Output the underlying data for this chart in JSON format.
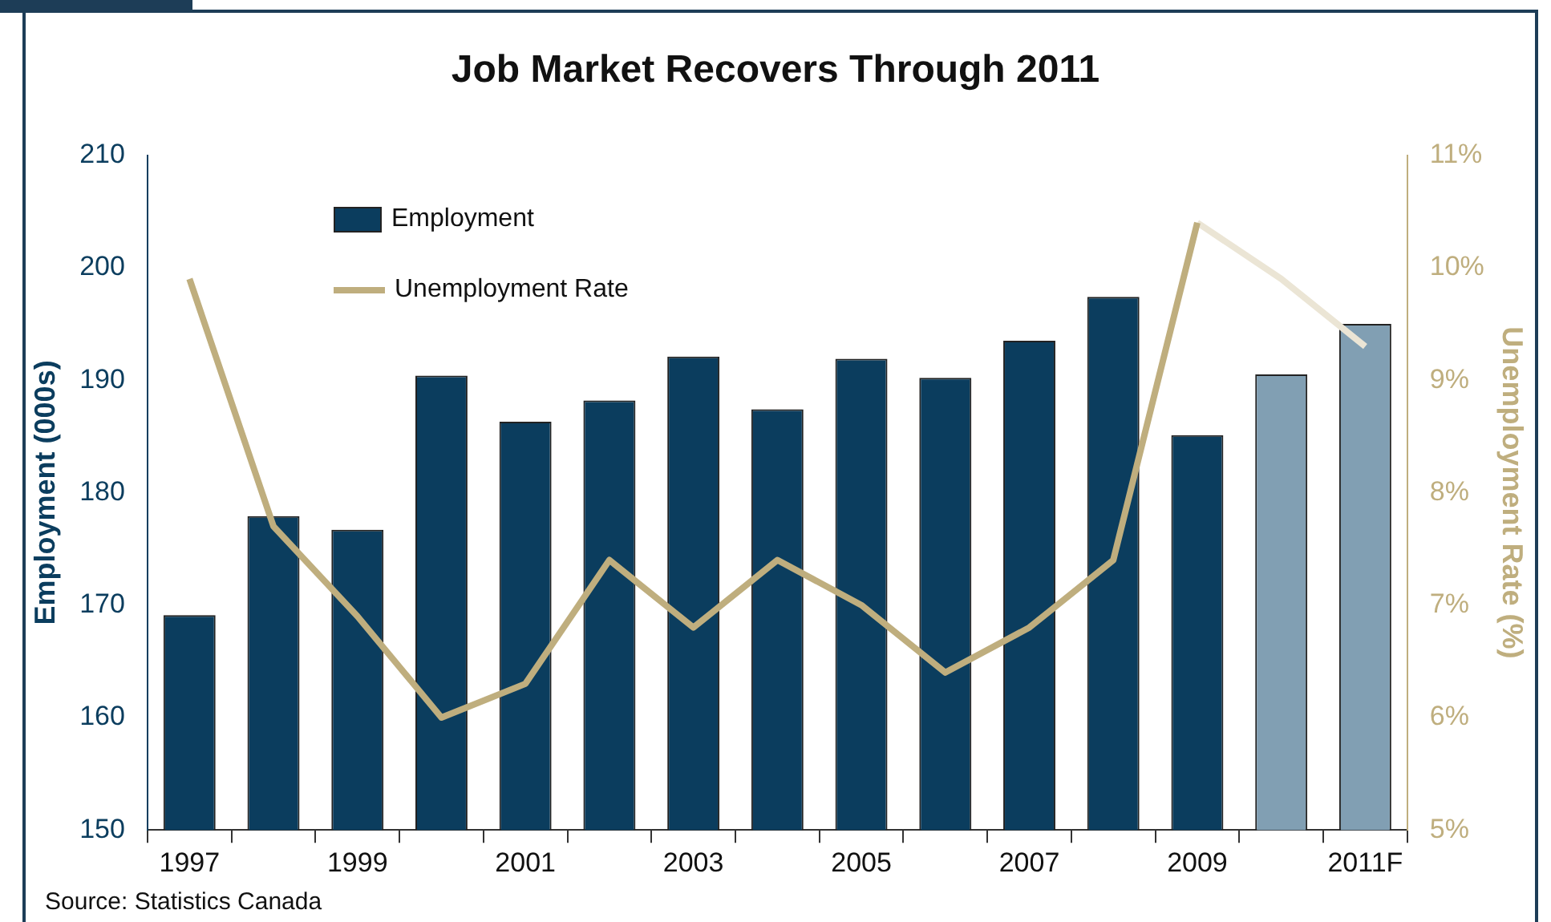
{
  "chart_data": {
    "type": "bar",
    "title": "Job Market Recovers Through 2011",
    "ylabel": "Employment (000s)",
    "y2label": "Unemployment Rate (%)",
    "categories": [
      "1997",
      null,
      "1999",
      null,
      "2001",
      null,
      "2003",
      null,
      "2005",
      null,
      "2007",
      null,
      "2009",
      null,
      "2011F"
    ],
    "series": [
      {
        "name": "Employment",
        "color": "#0b3d5e",
        "colors": [
          "#0b3d5e",
          "#0b3d5e",
          "#0b3d5e",
          "#0b3d5e",
          "#0b3d5e",
          "#0b3d5e",
          "#0b3d5e",
          "#0b3d5e",
          "#0b3d5e",
          "#0b3d5e",
          "#0b3d5e",
          "#0b3d5e",
          "#0b3d5e",
          "#819fb3",
          "#819fb3"
        ],
        "values": [
          169.1,
          177.9,
          176.7,
          190.4,
          186.3,
          188.2,
          192.1,
          187.4,
          191.9,
          190.2,
          193.5,
          197.4,
          185.1,
          190.5,
          195.0
        ]
      },
      {
        "name": "Unemployment Rate",
        "type": "line",
        "axis": "y2",
        "color": "#bfae7e",
        "values": [
          9.9,
          7.7,
          6.9,
          6.0,
          6.3,
          7.4,
          6.8,
          7.4,
          7.0,
          6.4,
          6.8,
          7.4,
          10.4,
          null,
          null
        ]
      },
      {
        "type": "line",
        "axis": "y2",
        "color": "#ebe5d5",
        "values": [
          null,
          null,
          null,
          null,
          null,
          null,
          null,
          null,
          null,
          null,
          null,
          null,
          10.4,
          9.9,
          9.3
        ]
      }
    ],
    "ylim": [
      150,
      210
    ],
    "yticks": [
      150,
      160,
      170,
      180,
      190,
      200,
      210
    ],
    "y2lim": [
      5,
      11
    ],
    "y2ticks": [
      {
        "value": 5,
        "label": "5%"
      },
      {
        "value": 6,
        "label": "6%"
      },
      {
        "value": 7,
        "label": "7%"
      },
      {
        "value": 8,
        "label": "8%"
      },
      {
        "value": 9,
        "label": "9%"
      },
      {
        "value": 10,
        "label": "10%"
      },
      {
        "value": 11,
        "label": "11%"
      }
    ],
    "grid": false,
    "legend": "top left",
    "marker": "none",
    "annotations": [
      "Source: Statistics Canada"
    ]
  }
}
